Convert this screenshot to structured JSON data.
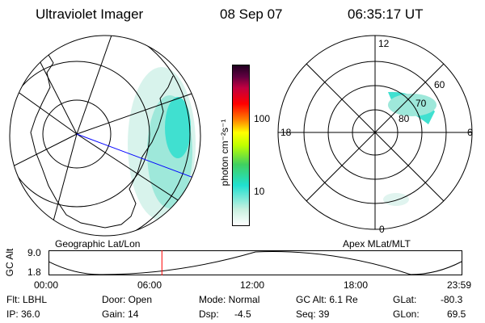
{
  "header": {
    "instrument": "Ultraviolet Imager",
    "date": "08 Sep 07",
    "time": "06:35:17 UT"
  },
  "colorbar": {
    "label": "photon cm⁻²s⁻¹",
    "tick_100": "100",
    "tick_10": "10",
    "stops": [
      "#ffffff",
      "#c8f0e0",
      "#20e0d0",
      "#40d060",
      "#c0ff00",
      "#ffff00",
      "#ff8000",
      "#ff0000",
      "#c00040",
      "#600040",
      "#200020"
    ]
  },
  "geo_panel": {
    "label": "Geographic Lat/Lon"
  },
  "apex_panel": {
    "label": "Apex MLat/MLT",
    "mlt_top": "12",
    "mlt_left": "18",
    "mlt_right": "6",
    "mlt_bottom": "0",
    "lat_60": "60",
    "lat_70": "70",
    "lat_80": "80"
  },
  "altitude_plot": {
    "ylabel": "GC Alt",
    "y_max": "9.0",
    "y_min": "1.8",
    "x_ticks": [
      "00:00",
      "06:00",
      "12:00",
      "18:00",
      "23:59"
    ],
    "current_time_hours": 6.59
  },
  "footer": {
    "flt": "Flt: LBHL",
    "ip": "IP: 36.0",
    "door": "Door: Open",
    "gain": "Gain: 14",
    "mode": "Mode: Normal",
    "dsp_label": "Dsp:",
    "dsp_value": "-4.5",
    "gc_alt": "GC Alt: 6.1 Re",
    "seq": "Seq: 39",
    "glat_label": "GLat:",
    "glat_value": "-80.3",
    "glon_label": "GLon:",
    "glon_value": "69.5"
  },
  "colors": {
    "aurora_cyan": "#40e0d0",
    "aurora_light": "#c8efe6",
    "track": "#0000ff",
    "marker": "#ff0000"
  }
}
